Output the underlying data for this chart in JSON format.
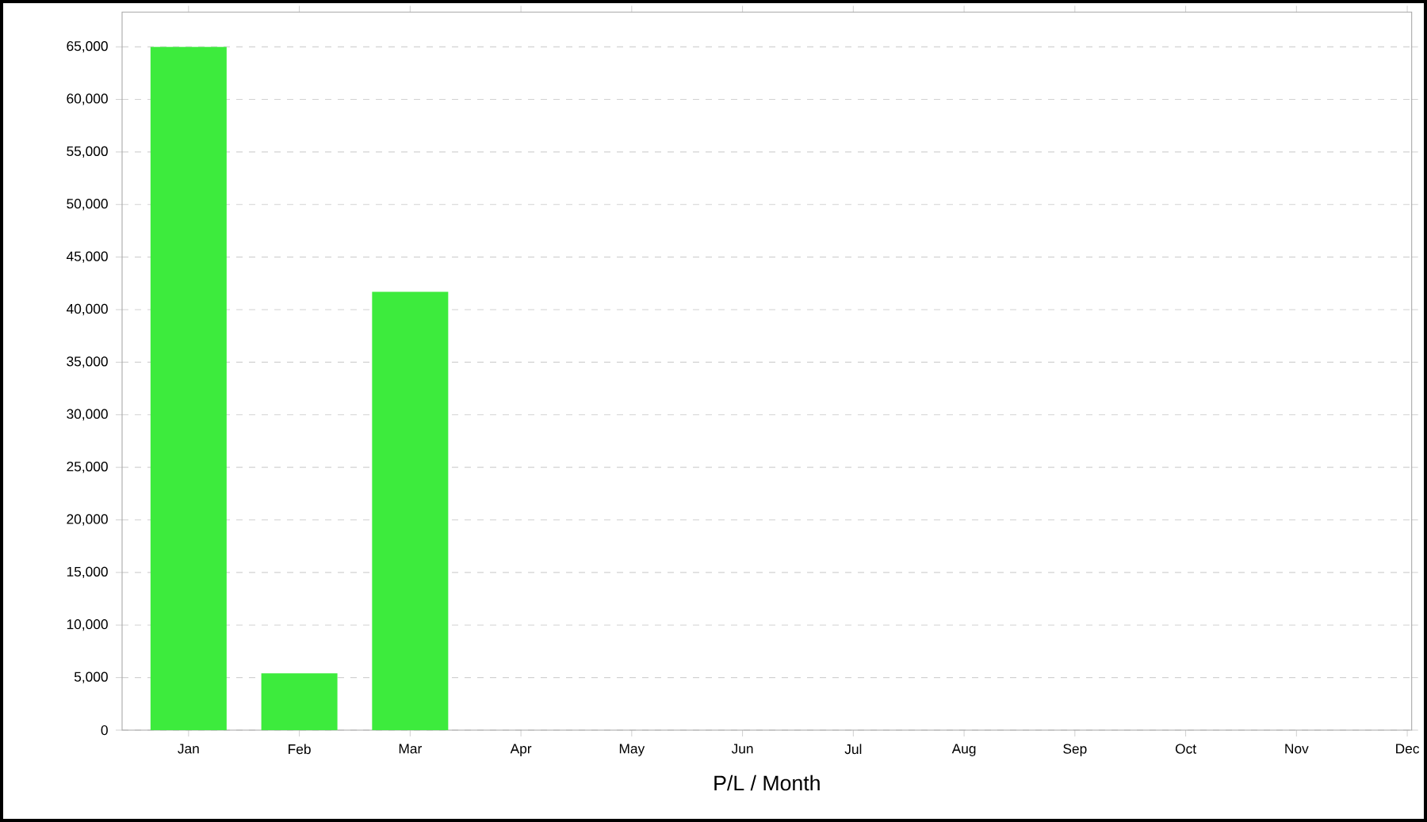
{
  "chart_data": {
    "type": "bar",
    "xlabel": "P/L / Month",
    "categories": [
      "Jan",
      "Feb",
      "Mar",
      "Apr",
      "May",
      "Jun",
      "Jul",
      "Aug",
      "Sep",
      "Oct",
      "Nov",
      "Dec"
    ],
    "values": [
      65000,
      5400,
      41700,
      null,
      null,
      null,
      null,
      null,
      null,
      null,
      null,
      null
    ],
    "color": "#3deb3d",
    "ylim": [
      0,
      68300
    ],
    "yticks": [
      {
        "value": 0,
        "label": "0"
      },
      {
        "value": 5000,
        "label": "5,000"
      },
      {
        "value": 10000,
        "label": "10,000"
      },
      {
        "value": 15000,
        "label": "15,000"
      },
      {
        "value": 20000,
        "label": "20,000"
      },
      {
        "value": 25000,
        "label": "25,000"
      },
      {
        "value": 30000,
        "label": "30,000"
      },
      {
        "value": 35000,
        "label": "35,000"
      },
      {
        "value": 40000,
        "label": "40,000"
      },
      {
        "value": 45000,
        "label": "45,000"
      },
      {
        "value": 50000,
        "label": "50,000"
      },
      {
        "value": 55000,
        "label": "55,000"
      },
      {
        "value": 60000,
        "label": "60,000"
      },
      {
        "value": 65000,
        "label": "65,000"
      }
    ],
    "grid": "y"
  }
}
